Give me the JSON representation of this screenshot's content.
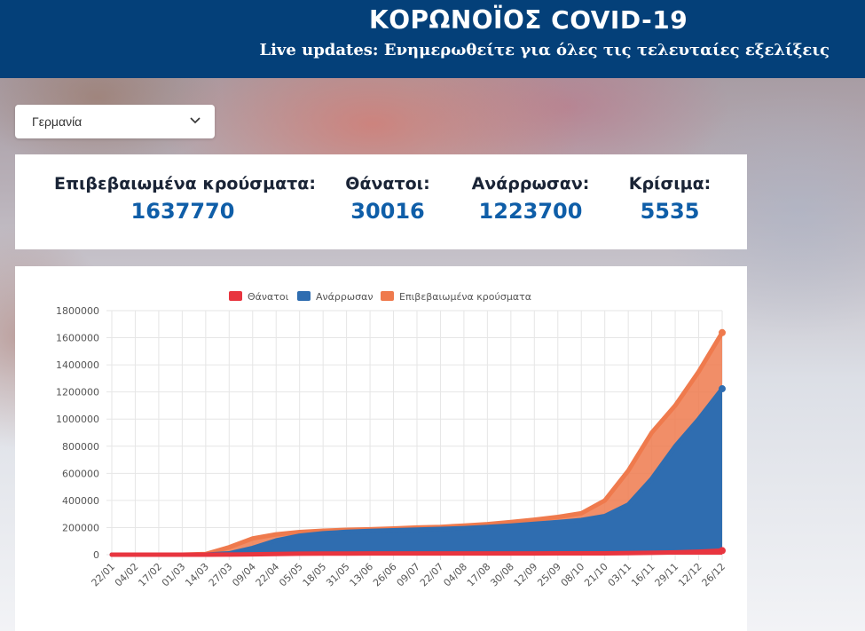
{
  "header": {
    "title": "ΚΟΡΩΝΟΪΟΣ COVID-19",
    "subtitle": "Live updates: Ενημερωθείτε για όλες τις τελευταίες εξελίξεις"
  },
  "country_select": {
    "value": "Γερμανία",
    "icon": "chevron-down-icon"
  },
  "stats": [
    {
      "label": "Επιβεβαιωμένα κρούσματα:",
      "value": "1637770"
    },
    {
      "label": "Θάνατοι:",
      "value": "30016"
    },
    {
      "label": "Ανάρρωσαν:",
      "value": "1223700"
    },
    {
      "label": "Κρίσιμα:",
      "value": "5535"
    }
  ],
  "colors": {
    "header_bg": "#044079",
    "value_blue": "#0f5ea8",
    "deaths": "#e8353f",
    "recovered": "#2f6db0",
    "confirmed": "#ef7a4d"
  },
  "chart_data": {
    "type": "area",
    "legend": [
      "Θάνατοι",
      "Ανάρρωσαν",
      "Επιβεβαιωμένα κρούσματα"
    ],
    "legend_position": "top",
    "grid": true,
    "ylim": [
      0,
      1800000
    ],
    "yticks": [
      "1800000",
      "1600000",
      "1400000",
      "1200000",
      "1000000",
      "800000",
      "600000",
      "400000",
      "200000",
      "0"
    ],
    "xticks": [
      "22/01",
      "04/02",
      "17/02",
      "01/03",
      "14/03",
      "27/03",
      "09/04",
      "22/04",
      "05/05",
      "18/05",
      "31/05",
      "13/06",
      "26/06",
      "09/07",
      "22/07",
      "04/08",
      "17/08",
      "30/08",
      "12/09",
      "25/09",
      "08/10",
      "21/10",
      "03/11",
      "16/11",
      "29/11",
      "12/12",
      "26/12"
    ],
    "series": [
      {
        "name": "Θάνατοι",
        "values": [
          0,
          0,
          0,
          0,
          0,
          500,
          2500,
          5500,
          7000,
          8200,
          8600,
          8900,
          9000,
          9100,
          9150,
          9200,
          9250,
          9300,
          9400,
          9500,
          9700,
          10000,
          11500,
          14000,
          17000,
          22000,
          30016
        ]
      },
      {
        "name": "Ανάρρωσαν",
        "values": [
          0,
          0,
          0,
          0,
          100,
          10000,
          50000,
          105000,
          140000,
          158000,
          168000,
          175000,
          180000,
          185000,
          190000,
          196000,
          205000,
          215000,
          228000,
          240000,
          255000,
          285000,
          370000,
          560000,
          800000,
          1000000,
          1223700
        ]
      },
      {
        "name": "Επιβεβαιωμένα κρούσματα",
        "values": [
          0,
          0,
          16,
          130,
          4500,
          55000,
          120000,
          150000,
          167000,
          177000,
          183000,
          187000,
          193000,
          200000,
          205000,
          215000,
          225000,
          240000,
          258000,
          278000,
          305000,
          400000,
          620000,
          900000,
          1100000,
          1350000,
          1637770
        ]
      }
    ]
  }
}
